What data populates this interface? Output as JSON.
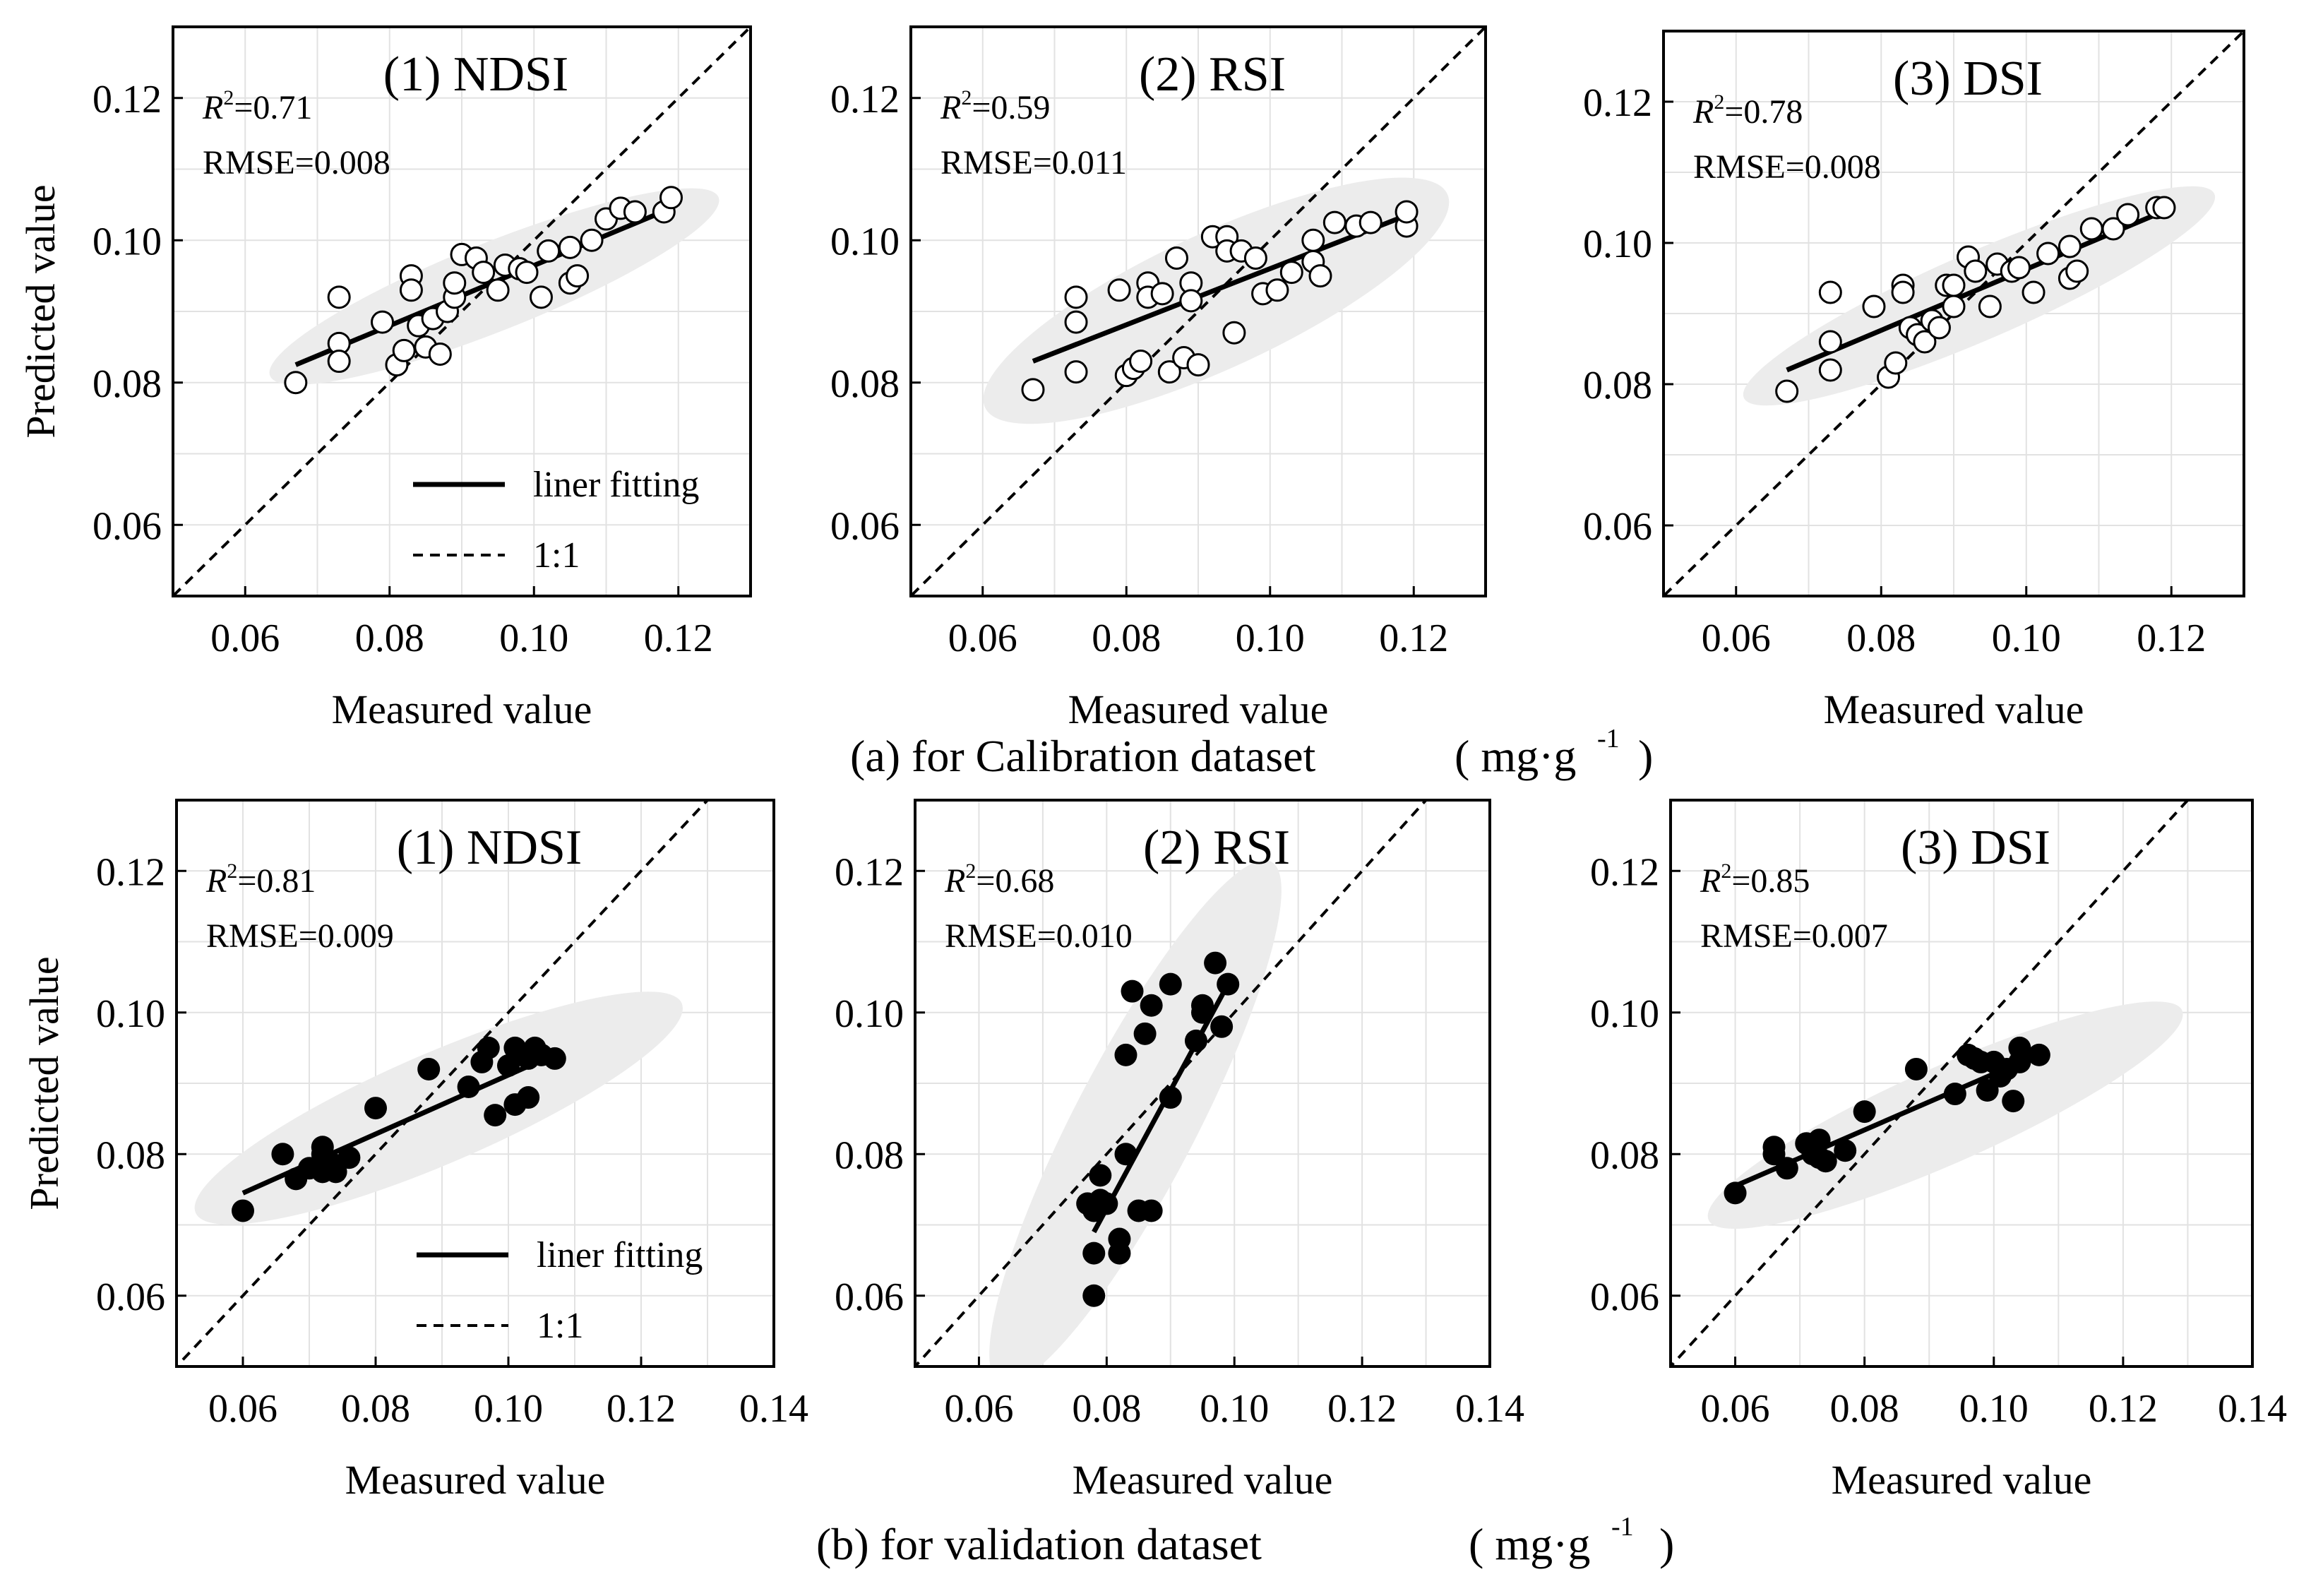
{
  "captions": {
    "top_main": "(a) for Calibration dataset",
    "top_unit": "( mg·g",
    "top_unit_sup": "-1",
    "top_unit_close": ")",
    "bottom_main": "(b) for  validation dataset",
    "bottom_unit": "( mg·g",
    "bottom_unit_sup": "-1",
    "bottom_unit_close": ")"
  },
  "legend": {
    "fit": "liner fitting",
    "ref": "1:1"
  },
  "chart_data": [
    {
      "type": "scatter",
      "title": "(1) NDSI",
      "row": "calibration",
      "r2_label": "R",
      "r2_sup": "2",
      "r2_value": "=0.71",
      "rmse": "RMSE=0.008",
      "xlabel": "Measured value",
      "ylabel": "Predicted value",
      "xlim": [
        0.05,
        0.13
      ],
      "ylim": [
        0.05,
        0.13
      ],
      "xticks": [
        "0.06",
        "0.08",
        "0.10",
        "0.12"
      ],
      "yticks": [
        "0.06",
        "0.08",
        "0.10",
        "0.12"
      ],
      "marker": "open",
      "legend": true,
      "fit": [
        [
          0.067,
          0.0825
        ],
        [
          0.119,
          0.1045
        ]
      ],
      "ellipse": {
        "cx": 0.0945,
        "cy": 0.0935,
        "rx": 0.0335,
        "ry": 0.0062,
        "angle_deg": 22
      },
      "points": [
        [
          0.067,
          0.08
        ],
        [
          0.073,
          0.092
        ],
        [
          0.073,
          0.0855
        ],
        [
          0.073,
          0.083
        ],
        [
          0.079,
          0.0885
        ],
        [
          0.081,
          0.0825
        ],
        [
          0.082,
          0.0845
        ],
        [
          0.083,
          0.095
        ],
        [
          0.083,
          0.093
        ],
        [
          0.084,
          0.088
        ],
        [
          0.085,
          0.085
        ],
        [
          0.086,
          0.089
        ],
        [
          0.087,
          0.084
        ],
        [
          0.088,
          0.09
        ],
        [
          0.089,
          0.092
        ],
        [
          0.089,
          0.094
        ],
        [
          0.09,
          0.098
        ],
        [
          0.092,
          0.0975
        ],
        [
          0.093,
          0.0955
        ],
        [
          0.095,
          0.093
        ],
        [
          0.096,
          0.0965
        ],
        [
          0.098,
          0.096
        ],
        [
          0.099,
          0.0955
        ],
        [
          0.101,
          0.092
        ],
        [
          0.102,
          0.0985
        ],
        [
          0.105,
          0.099
        ],
        [
          0.105,
          0.094
        ],
        [
          0.106,
          0.095
        ],
        [
          0.108,
          0.1
        ],
        [
          0.11,
          0.103
        ],
        [
          0.112,
          0.1045
        ],
        [
          0.114,
          0.104
        ],
        [
          0.118,
          0.104
        ],
        [
          0.119,
          0.106
        ]
      ]
    },
    {
      "type": "scatter",
      "title": "(2) RSI",
      "row": "calibration",
      "r2_label": "R",
      "r2_sup": "2",
      "r2_value": "=0.59",
      "rmse": "RMSE=0.011",
      "xlabel": "Measured value",
      "ylabel": "",
      "xlim": [
        0.05,
        0.13
      ],
      "ylim": [
        0.05,
        0.13
      ],
      "xticks": [
        "0.06",
        "0.08",
        "0.10",
        "0.12"
      ],
      "yticks": [
        "0.06",
        "0.08",
        "0.10",
        "0.12"
      ],
      "marker": "open",
      "legend": false,
      "fit": [
        [
          0.067,
          0.083
        ],
        [
          0.119,
          0.1035
        ]
      ],
      "ellipse": {
        "cx": 0.0925,
        "cy": 0.0915,
        "rx": 0.0355,
        "ry": 0.0095,
        "angle_deg": 25
      },
      "points": [
        [
          0.067,
          0.079
        ],
        [
          0.073,
          0.092
        ],
        [
          0.073,
          0.0885
        ],
        [
          0.073,
          0.0815
        ],
        [
          0.079,
          0.093
        ],
        [
          0.08,
          0.081
        ],
        [
          0.081,
          0.082
        ],
        [
          0.082,
          0.083
        ],
        [
          0.083,
          0.094
        ],
        [
          0.083,
          0.092
        ],
        [
          0.085,
          0.0925
        ],
        [
          0.086,
          0.0815
        ],
        [
          0.087,
          0.0975
        ],
        [
          0.088,
          0.0835
        ],
        [
          0.089,
          0.094
        ],
        [
          0.089,
          0.0915
        ],
        [
          0.09,
          0.0825
        ],
        [
          0.092,
          0.1005
        ],
        [
          0.094,
          0.1005
        ],
        [
          0.094,
          0.0985
        ],
        [
          0.095,
          0.087
        ],
        [
          0.096,
          0.0985
        ],
        [
          0.098,
          0.0975
        ],
        [
          0.099,
          0.0925
        ],
        [
          0.101,
          0.093
        ],
        [
          0.103,
          0.0955
        ],
        [
          0.106,
          0.097
        ],
        [
          0.106,
          0.1
        ],
        [
          0.107,
          0.095
        ],
        [
          0.109,
          0.1025
        ],
        [
          0.112,
          0.102
        ],
        [
          0.114,
          0.1025
        ],
        [
          0.119,
          0.102
        ],
        [
          0.119,
          0.104
        ]
      ]
    },
    {
      "type": "scatter",
      "title": "(3) DSI",
      "row": "calibration",
      "r2_label": "R",
      "r2_sup": "2",
      "r2_value": "=0.78",
      "rmse": "RMSE=0.008",
      "xlabel": "Measured value",
      "ylabel": "",
      "xlim": [
        0.05,
        0.13
      ],
      "ylim": [
        0.05,
        0.13
      ],
      "xticks": [
        "0.06",
        "0.08",
        "0.10",
        "0.12"
      ],
      "yticks": [
        "0.06",
        "0.08",
        "0.10",
        "0.12"
      ],
      "marker": "open",
      "legend": false,
      "fit": [
        [
          0.067,
          0.082
        ],
        [
          0.119,
          0.1045
        ]
      ],
      "ellipse": {
        "cx": 0.0935,
        "cy": 0.0925,
        "rx": 0.0355,
        "ry": 0.0062,
        "angle_deg": 24
      },
      "points": [
        [
          0.067,
          0.079
        ],
        [
          0.073,
          0.093
        ],
        [
          0.073,
          0.086
        ],
        [
          0.073,
          0.082
        ],
        [
          0.079,
          0.091
        ],
        [
          0.081,
          0.081
        ],
        [
          0.082,
          0.083
        ],
        [
          0.083,
          0.094
        ],
        [
          0.083,
          0.093
        ],
        [
          0.084,
          0.088
        ],
        [
          0.085,
          0.087
        ],
        [
          0.086,
          0.086
        ],
        [
          0.087,
          0.089
        ],
        [
          0.088,
          0.088
        ],
        [
          0.089,
          0.094
        ],
        [
          0.09,
          0.094
        ],
        [
          0.09,
          0.091
        ],
        [
          0.092,
          0.098
        ],
        [
          0.093,
          0.096
        ],
        [
          0.095,
          0.091
        ],
        [
          0.096,
          0.097
        ],
        [
          0.098,
          0.096
        ],
        [
          0.099,
          0.0965
        ],
        [
          0.101,
          0.093
        ],
        [
          0.103,
          0.0985
        ],
        [
          0.106,
          0.0995
        ],
        [
          0.106,
          0.095
        ],
        [
          0.107,
          0.096
        ],
        [
          0.109,
          0.102
        ],
        [
          0.112,
          0.102
        ],
        [
          0.114,
          0.104
        ],
        [
          0.118,
          0.105
        ],
        [
          0.119,
          0.105
        ]
      ]
    },
    {
      "type": "scatter",
      "title": "(1) NDSI",
      "row": "validation",
      "r2_label": "R",
      "r2_sup": "2",
      "r2_value": "=0.81",
      "rmse": "RMSE=0.009",
      "xlabel": "Measured value",
      "ylabel": "Predicted value",
      "xlim": [
        0.05,
        0.14
      ],
      "ylim": [
        0.05,
        0.13
      ],
      "xticks": [
        "0.06",
        "0.08",
        "0.10",
        "0.12",
        "0.14"
      ],
      "yticks": [
        "0.06",
        "0.08",
        "0.10",
        "0.12"
      ],
      "marker": "filled",
      "legend": true,
      "fit": [
        [
          0.06,
          0.0745
        ],
        [
          0.108,
          0.0945
        ]
      ],
      "ellipse": {
        "cx": 0.0895,
        "cy": 0.0865,
        "rx": 0.0395,
        "ry": 0.0078,
        "angle_deg": 22
      },
      "points": [
        [
          0.06,
          0.072
        ],
        [
          0.066,
          0.08
        ],
        [
          0.068,
          0.0765
        ],
        [
          0.07,
          0.078
        ],
        [
          0.072,
          0.081
        ],
        [
          0.072,
          0.08
        ],
        [
          0.072,
          0.0775
        ],
        [
          0.073,
          0.079
        ],
        [
          0.074,
          0.0775
        ],
        [
          0.076,
          0.0795
        ],
        [
          0.08,
          0.0865
        ],
        [
          0.088,
          0.092
        ],
        [
          0.094,
          0.0895
        ],
        [
          0.096,
          0.093
        ],
        [
          0.097,
          0.095
        ],
        [
          0.098,
          0.0855
        ],
        [
          0.1,
          0.0925
        ],
        [
          0.101,
          0.095
        ],
        [
          0.101,
          0.087
        ],
        [
          0.103,
          0.0935
        ],
        [
          0.103,
          0.088
        ],
        [
          0.104,
          0.095
        ],
        [
          0.105,
          0.094
        ],
        [
          0.107,
          0.0935
        ]
      ]
    },
    {
      "type": "scatter",
      "title": "(2) RSI",
      "row": "validation",
      "r2_label": "R",
      "r2_sup": "2",
      "r2_value": "=0.68",
      "rmse": "RMSE=0.010",
      "xlabel": "Measured value",
      "ylabel": "",
      "xlim": [
        0.05,
        0.14
      ],
      "ylim": [
        0.05,
        0.13
      ],
      "xticks": [
        "0.06",
        "0.08",
        "0.10",
        "0.12",
        "0.14"
      ],
      "yticks": [
        "0.06",
        "0.08",
        "0.10",
        "0.12"
      ],
      "marker": "filled",
      "legend": false,
      "fit": [
        [
          0.078,
          0.069
        ],
        [
          0.099,
          0.104
        ]
      ],
      "ellipse": {
        "cx": 0.0845,
        "cy": 0.0845,
        "rx": 0.0425,
        "ry": 0.0086,
        "angle_deg": 60
      },
      "points": [
        [
          0.077,
          0.073
        ],
        [
          0.078,
          0.06
        ],
        [
          0.078,
          0.066
        ],
        [
          0.078,
          0.072
        ],
        [
          0.079,
          0.0735
        ],
        [
          0.079,
          0.077
        ],
        [
          0.08,
          0.073
        ],
        [
          0.082,
          0.066
        ],
        [
          0.082,
          0.068
        ],
        [
          0.083,
          0.08
        ],
        [
          0.083,
          0.094
        ],
        [
          0.084,
          0.103
        ],
        [
          0.085,
          0.072
        ],
        [
          0.086,
          0.097
        ],
        [
          0.087,
          0.072
        ],
        [
          0.087,
          0.101
        ],
        [
          0.09,
          0.088
        ],
        [
          0.09,
          0.104
        ],
        [
          0.094,
          0.096
        ],
        [
          0.095,
          0.1
        ],
        [
          0.095,
          0.101
        ],
        [
          0.097,
          0.107
        ],
        [
          0.098,
          0.098
        ],
        [
          0.099,
          0.104
        ]
      ]
    },
    {
      "type": "scatter",
      "title": "(3) DSI",
      "row": "validation",
      "r2_label": "R",
      "r2_sup": "2",
      "r2_value": "=0.85",
      "rmse": "RMSE=0.007",
      "xlabel": "Measured value",
      "ylabel": "",
      "xlim": [
        0.05,
        0.14
      ],
      "ylim": [
        0.05,
        0.13
      ],
      "xticks": [
        "0.06",
        "0.08",
        "0.10",
        "0.12",
        "0.14"
      ],
      "yticks": [
        "0.06",
        "0.08",
        "0.10",
        "0.12"
      ],
      "marker": "filled",
      "legend": false,
      "fit": [
        [
          0.06,
          0.0755
        ],
        [
          0.108,
          0.0945
        ]
      ],
      "ellipse": {
        "cx": 0.0925,
        "cy": 0.0855,
        "rx": 0.0395,
        "ry": 0.0068,
        "angle_deg": 22
      },
      "points": [
        [
          0.06,
          0.0745
        ],
        [
          0.066,
          0.081
        ],
        [
          0.066,
          0.08
        ],
        [
          0.068,
          0.078
        ],
        [
          0.071,
          0.0815
        ],
        [
          0.072,
          0.08
        ],
        [
          0.073,
          0.082
        ],
        [
          0.073,
          0.0795
        ],
        [
          0.074,
          0.079
        ],
        [
          0.077,
          0.0805
        ],
        [
          0.08,
          0.086
        ],
        [
          0.088,
          0.092
        ],
        [
          0.094,
          0.0885
        ],
        [
          0.096,
          0.094
        ],
        [
          0.097,
          0.0935
        ],
        [
          0.098,
          0.093
        ],
        [
          0.099,
          0.089
        ],
        [
          0.1,
          0.093
        ],
        [
          0.101,
          0.091
        ],
        [
          0.102,
          0.092
        ],
        [
          0.103,
          0.0875
        ],
        [
          0.104,
          0.095
        ],
        [
          0.104,
          0.093
        ],
        [
          0.107,
          0.094
        ]
      ]
    }
  ]
}
